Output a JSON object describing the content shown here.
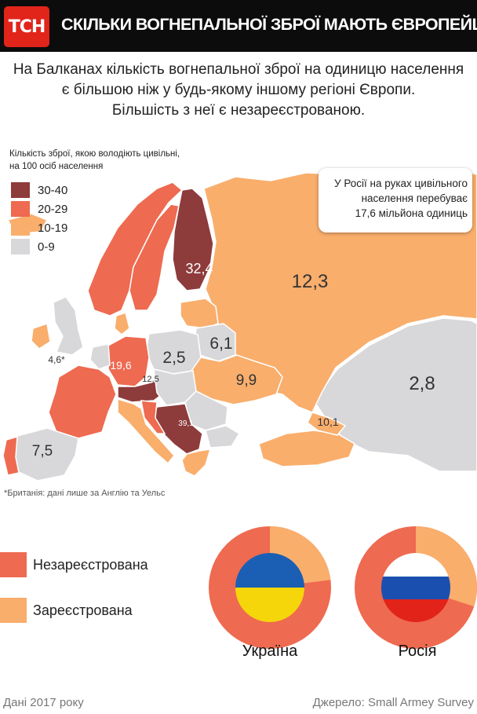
{
  "header": {
    "logo": "ТСН",
    "title": "СКІЛЬКИ ВОГНЕПАЛЬНОЇ ЗБРОЇ МАЮТЬ ЄВРОПЕЙЦІ"
  },
  "subtitle": [
    "На Балканах кількість вогнепальної зброї на одиницю населення",
    "є більшою ніж у будь-якому іншому регіоні Європи.",
    "Більшість з неї є незареєстрованою."
  ],
  "legend": {
    "title_line1": "Кількість зброї, якою володіють цивільні,",
    "title_line2": "на 100 осіб населення",
    "items": [
      {
        "label": "30-40",
        "color": "#8e3b3b"
      },
      {
        "label": "20-29",
        "color": "#ee6a50"
      },
      {
        "label": "10-19",
        "color": "#f9ae6c"
      },
      {
        "label": "0-9",
        "color": "#d8d8da"
      }
    ]
  },
  "callout": {
    "line1": "У Росії на руках цивільного",
    "line2": "населення перебуває",
    "line3": "17,6 мільйона одиниць"
  },
  "map_values": {
    "finland": "32,4",
    "russia": "12,3",
    "poland": "2,5",
    "belarus": "6,1",
    "britain": "4,6*",
    "germany": "19,6",
    "austria": "12,5",
    "ukraine": "9,9",
    "montenegro": "39,1",
    "georgia": "10,1",
    "spain": "7,5",
    "kazakhstan": "2,8"
  },
  "footnote": "*Британія: дані лише за Англію та Уельс",
  "registration_legend": [
    {
      "label": "Незареєстрована",
      "color": "#ee6a50"
    },
    {
      "label": "Зареєстрована",
      "color": "#f9ae6c"
    }
  ],
  "donuts": [
    {
      "country": "Україна",
      "unregistered_pct": 77,
      "flag": [
        "#1a5fb4",
        "#f5d60a"
      ]
    },
    {
      "country": "Росія",
      "unregistered_pct": 70,
      "flag": [
        "#ffffff",
        "#1a4fb0",
        "#e2231a"
      ]
    }
  ],
  "footer": {
    "left": "Дані 2017 року",
    "right": "Джерело: Small Armey Survey"
  }
}
